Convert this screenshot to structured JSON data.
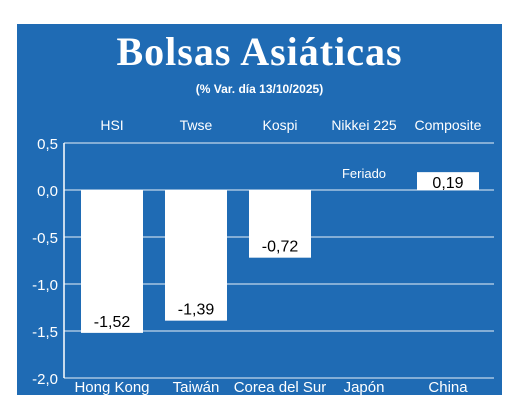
{
  "header": {
    "title": "Bolsas Asiáticas",
    "subtitle": "(% Var. día  13/10/2025)"
  },
  "colors": {
    "background": "#1f6bb4",
    "bar": "#ffffff",
    "text": "#ffffff",
    "label_text": "#000000"
  },
  "chart_data": {
    "type": "bar",
    "title": "Bolsas Asiáticas",
    "subtitle": "(% Var. día  13/10/2025)",
    "categories": [
      "Hong Kong",
      "Taiwán",
      "Corea del Sur",
      "Japón",
      "China"
    ],
    "indices": [
      "HSI",
      "Twse",
      "Kospi",
      "Nikkei 225",
      "Composite"
    ],
    "values": [
      -1.52,
      -1.39,
      -0.72,
      null,
      0.19
    ],
    "value_labels": [
      "-1,52",
      "-1,39",
      "-0,72",
      "Feriado",
      "0,19"
    ],
    "ylim": [
      -2.0,
      0.5
    ],
    "yticks": [
      0.5,
      0.0,
      -0.5,
      -1.0,
      -1.5,
      -2.0
    ],
    "ytick_labels": [
      "0,5",
      "0,0",
      "-0,5",
      "-1,0",
      "-1,5",
      "-2,0"
    ],
    "grid": true,
    "xlabel": "",
    "ylabel": ""
  }
}
